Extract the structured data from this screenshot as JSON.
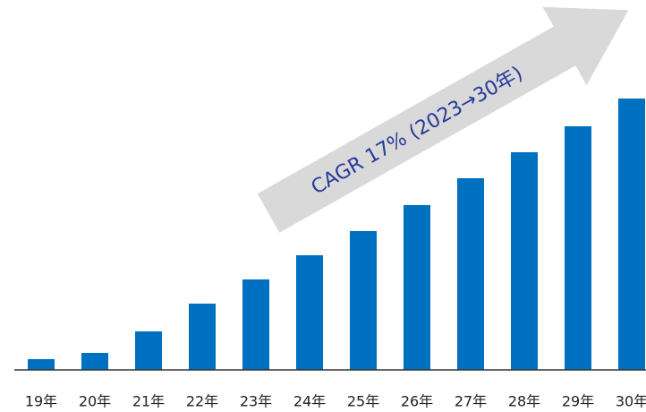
{
  "chart_data": {
    "type": "bar",
    "annotation": "CAGR 17% (2023→30年)",
    "categories": [
      "19年",
      "20年",
      "21年",
      "22年",
      "23年",
      "24年",
      "25年",
      "26年",
      "27年",
      "28年",
      "29年",
      "30年"
    ],
    "values": [
      12,
      19,
      43,
      74,
      101,
      128,
      155,
      184,
      214,
      243,
      272,
      303
    ],
    "color": "#0070c0",
    "ylim": [
      0,
      413
    ]
  }
}
